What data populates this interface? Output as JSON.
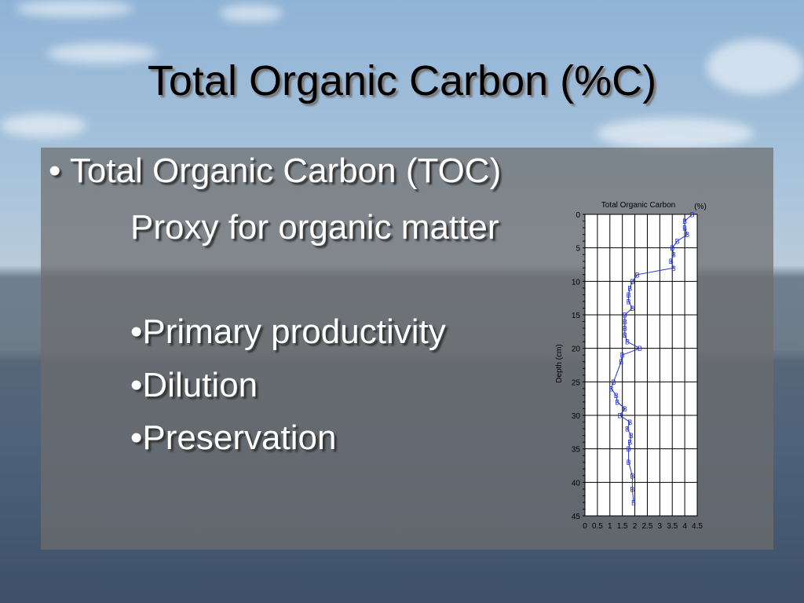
{
  "slide": {
    "title": "Total Organic Carbon (%C)",
    "bullets": [
      "Total Organic Carbon (TOC)"
    ],
    "subtext": "Proxy for organic matter",
    "sub_bullets": [
      "Primary productivity",
      "Dilution",
      "Preservation"
    ]
  },
  "chart_data": {
    "type": "line",
    "title": "Total Organic Carbon",
    "x_label": "(%)",
    "y_label": "Depth (cm)",
    "xlim": [
      0,
      4.5
    ],
    "xticks": [
      0,
      0.5,
      1,
      1.5,
      2,
      2.5,
      3,
      3.5,
      4,
      4.5
    ],
    "ylim": [
      0,
      45
    ],
    "yticks": [
      0,
      5,
      10,
      15,
      20,
      25,
      30,
      35,
      40,
      45
    ],
    "y_inverted": true,
    "grid": true,
    "series": [
      {
        "color": "#2233cc",
        "marker": "B",
        "x": [
          4.3,
          4.0,
          4.0,
          4.1,
          3.7,
          3.5,
          3.55,
          3.45,
          3.55,
          2.1,
          1.9,
          1.8,
          1.75,
          1.75,
          1.9,
          1.6,
          1.6,
          1.6,
          1.6,
          1.7,
          2.2,
          1.5,
          1.45,
          1.15,
          1.05,
          1.25,
          1.3,
          1.6,
          1.4,
          1.8,
          1.7,
          1.85,
          1.8,
          1.75,
          1.75,
          1.9,
          1.9,
          1.95
        ],
        "values": [
          0,
          1,
          2,
          3,
          4,
          5,
          6,
          7,
          8,
          9,
          10,
          11,
          12,
          13,
          14,
          15,
          16,
          17,
          18,
          19,
          20,
          21,
          22,
          25,
          26,
          27,
          28,
          29,
          30,
          31,
          32,
          33,
          34,
          35,
          37,
          39,
          41,
          43
        ]
      }
    ]
  }
}
